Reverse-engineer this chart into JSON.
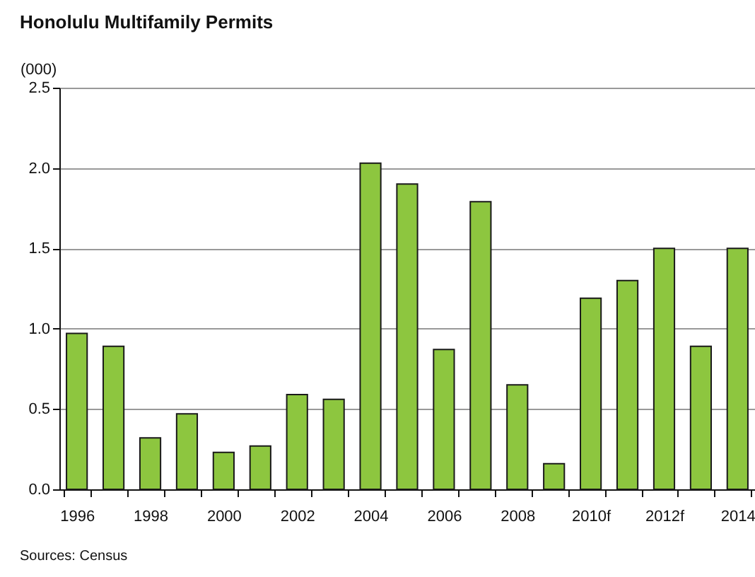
{
  "chart_data": {
    "type": "bar",
    "title": "Honolulu Multifamily Permits",
    "ylabel": "(000)",
    "categories": [
      "1996",
      null,
      "1998",
      null,
      "2000",
      null,
      "2002",
      null,
      "2004",
      null,
      "2006",
      null,
      "2008",
      null,
      "2010f",
      null,
      "2012f",
      null,
      "2014"
    ],
    "values": [
      0.97,
      0.89,
      0.32,
      0.47,
      0.23,
      0.27,
      0.59,
      0.56,
      2.03,
      1.9,
      0.87,
      1.79,
      0.65,
      0.16,
      1.19,
      1.3,
      1.5,
      0.89,
      1.5
    ],
    "color": "#8dc63f",
    "ylim": [
      0,
      2.5
    ],
    "yticks": [
      {
        "value": 0,
        "label": "0.0"
      },
      0.5,
      {
        "value": 1,
        "label": "1.0"
      },
      1.5,
      {
        "value": 2,
        "label": "2.0"
      },
      2.5
    ],
    "grid": "y",
    "annotations": [
      "Sources: Census"
    ]
  }
}
